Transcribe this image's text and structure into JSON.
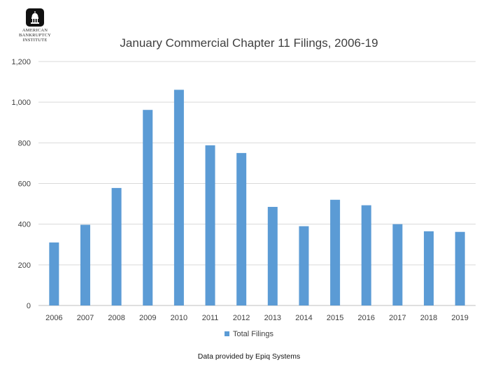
{
  "logo": {
    "icon": "capitol-dome-icon",
    "lines": [
      "American",
      "Bankruptcy",
      "Institute"
    ]
  },
  "footnote": "Data provided by Epiq Systems",
  "colors": {
    "bar": "#5B9BD5",
    "grid": "#D9D9D9",
    "text": "#404040"
  },
  "chart_data": {
    "type": "bar",
    "title": "January Commercial Chapter 11 Filings, 2006-19",
    "xlabel": "",
    "ylabel": "",
    "categories": [
      "2006",
      "2007",
      "2008",
      "2009",
      "2010",
      "2011",
      "2012",
      "2013",
      "2014",
      "2015",
      "2016",
      "2017",
      "2018",
      "2019"
    ],
    "series": [
      {
        "name": "Total Filings",
        "values": [
          310,
          397,
          578,
          962,
          1061,
          788,
          750,
          485,
          390,
          520,
          493,
          400,
          365,
          362
        ]
      }
    ],
    "ylim": [
      0,
      1200
    ],
    "yticks": [
      "0",
      "200",
      "400",
      "600",
      "800",
      "1,000",
      "1,200"
    ],
    "grid": true,
    "legend": "bottom"
  }
}
